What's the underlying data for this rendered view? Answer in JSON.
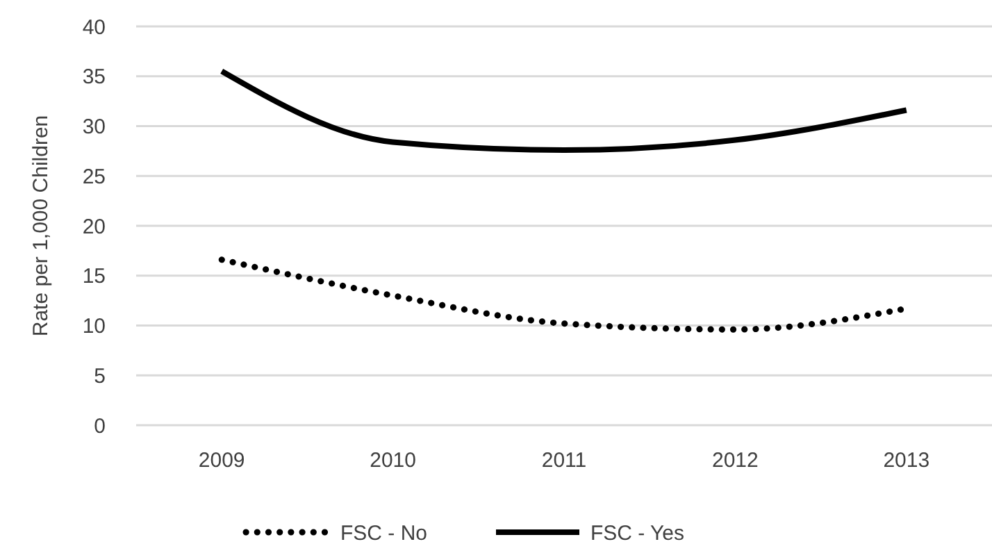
{
  "chart_data": {
    "type": "line",
    "ylabel": "Rate per 1,000 Children",
    "categories": [
      "2009",
      "2010",
      "2011",
      "2012",
      "2013"
    ],
    "series": [
      {
        "name": "FSC - No",
        "color": "#000000",
        "line_style": "dotted",
        "values": [
          16.6,
          13.0,
          10.2,
          9.6,
          11.7
        ]
      },
      {
        "name": "FSC - Yes",
        "color": "#000000",
        "line_style": "solid",
        "values": [
          35.5,
          28.4,
          27.6,
          28.6,
          31.6
        ]
      }
    ],
    "ylim": [
      0,
      40
    ],
    "yticks": [
      0,
      5,
      10,
      15,
      20,
      25,
      30,
      35,
      40
    ],
    "grid": "y",
    "legend": "bottom",
    "marker": "none"
  }
}
